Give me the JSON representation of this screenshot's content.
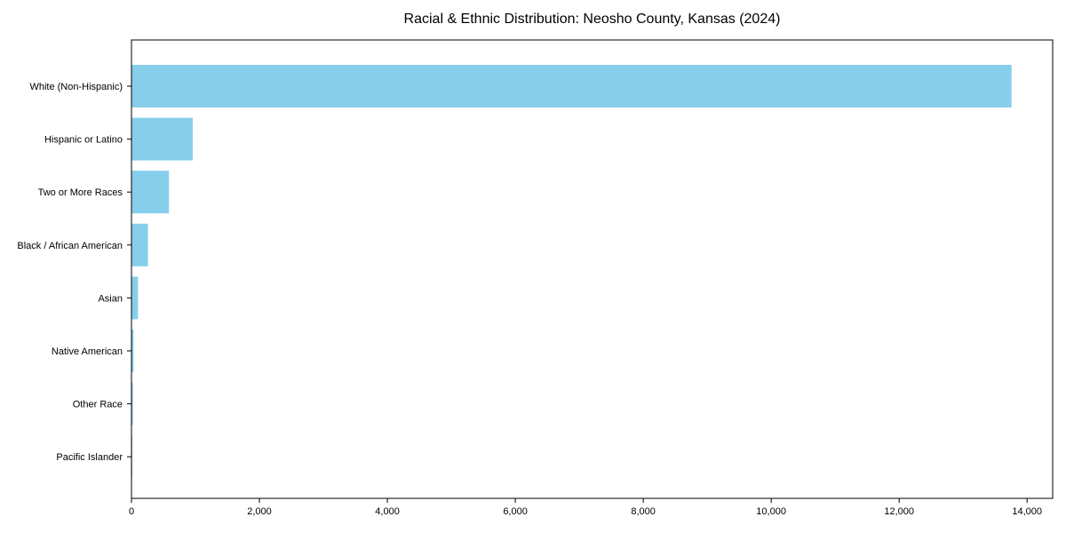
{
  "chart_data": {
    "type": "bar",
    "orientation": "horizontal",
    "title": "Racial & Ethnic Distribution: Neosho County, Kansas (2024)",
    "categories": [
      "White (Non-Hispanic)",
      "Hispanic or Latino",
      "Two or More Races",
      "Black / African American",
      "Asian",
      "Native American",
      "Other Race",
      "Pacific Islander"
    ],
    "values": [
      13750,
      950,
      580,
      250,
      95,
      25,
      15,
      5
    ],
    "xlabel": "",
    "ylabel": "",
    "xlim": [
      0,
      14400
    ],
    "x_ticks": [
      0,
      2000,
      4000,
      6000,
      8000,
      10000,
      12000,
      14000
    ],
    "x_tick_labels": [
      "0",
      "2,000",
      "4,000",
      "6,000",
      "8,000",
      "10,000",
      "12,000",
      "14,000"
    ],
    "bar_color": "#87CEEB",
    "frame_color": "#000000",
    "grid": false,
    "legend": null
  }
}
